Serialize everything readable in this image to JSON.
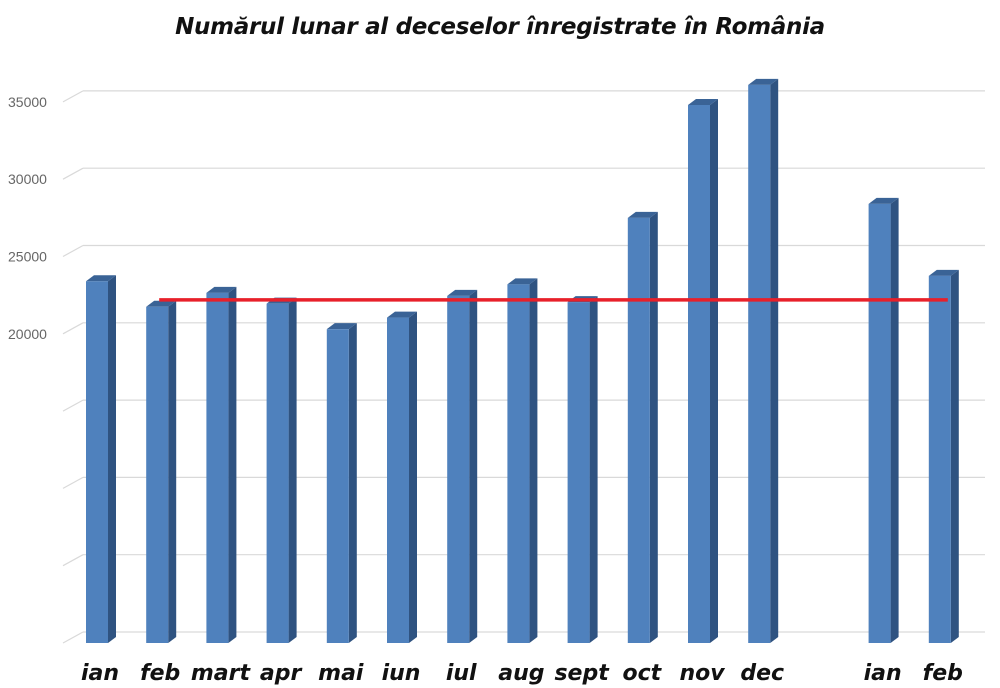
{
  "chart_data": {
    "type": "bar",
    "title": "Numărul lunar al deceselor înregistrate în România",
    "xlabel": "",
    "ylabel": "",
    "categories": [
      "ian",
      "feb",
      "mart",
      "apr",
      "mai",
      "iun",
      "iul",
      "aug",
      "sept",
      "oct",
      "nov",
      "dec",
      "ian",
      "feb"
    ],
    "values": [
      23400,
      21750,
      22650,
      21950,
      20300,
      21050,
      22450,
      23200,
      22050,
      27500,
      34800,
      36100,
      28400,
      23750
    ],
    "ylim": [
      0,
      35000
    ],
    "yticks": [
      0,
      5000,
      10000,
      15000,
      20000,
      25000,
      30000,
      35000
    ],
    "ytick_labels": [
      "",
      "",
      "",
      "",
      "20000",
      "25000",
      "30000",
      "35000"
    ],
    "grid": true,
    "bar_color": "#4f81bd",
    "reference_line": {
      "value": 22000,
      "color": "#e8202a",
      "from_category_index": 1,
      "to_category_index": 13
    }
  }
}
